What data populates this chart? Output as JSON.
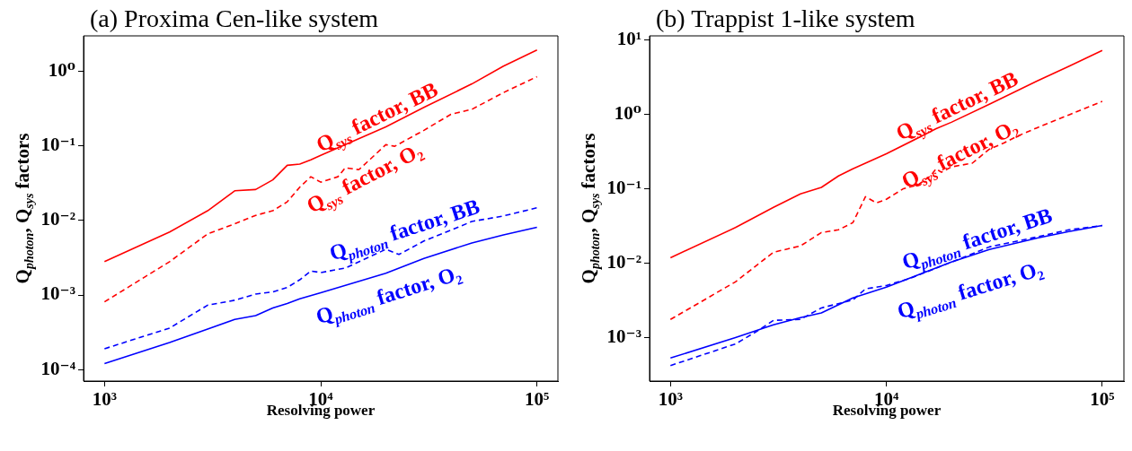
{
  "chart_data": [
    {
      "type": "line",
      "title": "(a) Proxima Cen-like system",
      "xlabel": "Resolving power",
      "ylabel": "Q$_{photon}$, Q$_{sys}$ factors",
      "log": "xy",
      "grid": false,
      "xlim": [
        800,
        125000
      ],
      "ylim": [
        7.4e-05,
        3
      ],
      "xticks": [
        {
          "value": 1000,
          "label": "10³"
        },
        {
          "value": 10000,
          "label": "10⁴"
        },
        {
          "value": 100000,
          "label": "10⁵"
        }
      ],
      "yticks": [
        {
          "value": 0.0001,
          "label": "10⁻⁴"
        },
        {
          "value": 0.001,
          "label": "10⁻³"
        },
        {
          "value": 0.01,
          "label": "10⁻²"
        },
        {
          "value": 0.1,
          "label": "10⁻¹"
        },
        {
          "value": 1,
          "label": "10⁰"
        }
      ],
      "series": [
        {
          "name": "Q$_{sys}$ factor, BB",
          "color": "#ff0000",
          "line_style": "solid",
          "x": [
            1000,
            2000,
            3000,
            4000,
            5000,
            6000,
            7000,
            8000,
            9000,
            10000,
            13000,
            20000,
            30000,
            50000,
            70000,
            100000
          ],
          "values": [
            0.0028,
            0.007,
            0.0135,
            0.025,
            0.026,
            0.035,
            0.055,
            0.057,
            0.065,
            0.075,
            0.104,
            0.18,
            0.33,
            0.68,
            1.18,
            1.94
          ]
        },
        {
          "name": "Q$_{sys}$ factor, O₂",
          "color": "#ff0000",
          "line_style": "dashed",
          "x": [
            1000,
            2000,
            3000,
            4000,
            5000,
            6000,
            7000,
            8000,
            9000,
            10000,
            12000,
            13000,
            15000,
            17000,
            20000,
            22000,
            30000,
            40000,
            50000,
            70000,
            100000
          ],
          "values": [
            0.00081,
            0.0028,
            0.0066,
            0.009,
            0.0117,
            0.0135,
            0.0178,
            0.028,
            0.0386,
            0.0327,
            0.0386,
            0.051,
            0.048,
            0.067,
            0.104,
            0.099,
            0.162,
            0.266,
            0.31,
            0.52,
            0.85
          ]
        },
        {
          "name": "Q$_{photon}$ factor, BB",
          "color": "#0000ff",
          "line_style": "dashed",
          "x": [
            1000,
            2000,
            3000,
            4000,
            5000,
            6000,
            7000,
            8000,
            9000,
            10000,
            13000,
            20000,
            23000,
            30000,
            40000,
            50000,
            70000,
            100000
          ],
          "values": [
            0.00019,
            0.00036,
            0.00073,
            0.00085,
            0.00103,
            0.0011,
            0.00126,
            0.0016,
            0.0021,
            0.002,
            0.0023,
            0.0041,
            0.0035,
            0.0053,
            0.0074,
            0.0097,
            0.0115,
            0.0148
          ]
        },
        {
          "name": "Q$_{photon}$ factor, O₂",
          "color": "#0000ff",
          "line_style": "solid",
          "x": [
            1000,
            2000,
            3000,
            4000,
            5000,
            6000,
            7000,
            8000,
            10000,
            20000,
            30000,
            50000,
            70000,
            100000
          ],
          "values": [
            0.00012,
            0.00023,
            0.00035,
            0.00047,
            0.00053,
            0.00067,
            0.00077,
            0.00089,
            0.00107,
            0.00196,
            0.0031,
            0.005,
            0.0064,
            0.0081
          ]
        }
      ]
    },
    {
      "type": "line",
      "title": "(b) Trappist 1-like system",
      "xlabel": "Resolving power",
      "ylabel": "Q$_{photon}$, Q$_{sys}$ factors",
      "log": "xy",
      "grid": false,
      "xlim": [
        800,
        126000
      ],
      "ylim": [
        0.00026,
        11.3
      ],
      "xticks": [
        {
          "value": 1000,
          "label": "10³"
        },
        {
          "value": 10000,
          "label": "10⁴"
        },
        {
          "value": 100000,
          "label": "10⁵"
        }
      ],
      "yticks": [
        {
          "value": 0.001,
          "label": "10⁻³"
        },
        {
          "value": 0.01,
          "label": "10⁻²"
        },
        {
          "value": 0.1,
          "label": "10⁻¹"
        },
        {
          "value": 1,
          "label": "10⁰"
        },
        {
          "value": 10,
          "label": "10¹"
        }
      ],
      "series": [
        {
          "name": "Q$_{sys}$ factor, BB",
          "color": "#ff0000",
          "line_style": "solid",
          "x": [
            1000,
            2000,
            3000,
            4000,
            5000,
            6000,
            7000,
            8000,
            10000,
            15000,
            17000,
            20000,
            30000,
            50000,
            70000,
            100000
          ],
          "values": [
            0.0118,
            0.03,
            0.056,
            0.085,
            0.104,
            0.148,
            0.185,
            0.22,
            0.295,
            0.53,
            0.64,
            0.78,
            1.36,
            2.8,
            4.4,
            7.2
          ]
        },
        {
          "name": "Q$_{sys}$ factor, O₂",
          "color": "#ff0000",
          "line_style": "dashed",
          "x": [
            1000,
            2000,
            3000,
            4000,
            5000,
            6000,
            7000,
            8000,
            9000,
            10000,
            12000,
            14000,
            16000,
            17000,
            18000,
            20000,
            25000,
            30000,
            35000,
            40000,
            50000,
            70000,
            100000
          ],
          "values": [
            0.00175,
            0.0056,
            0.014,
            0.017,
            0.0257,
            0.028,
            0.035,
            0.078,
            0.0645,
            0.072,
            0.1,
            0.112,
            0.148,
            0.185,
            0.166,
            0.196,
            0.22,
            0.34,
            0.41,
            0.5,
            0.66,
            0.98,
            1.49
          ]
        },
        {
          "name": "Q$_{photon}$ factor, BB",
          "color": "#0000ff",
          "line_style": "dashed",
          "x": [
            1000,
            2000,
            2500,
            3000,
            4000,
            5000,
            7000,
            8000,
            10000,
            13000,
            20000,
            30000,
            50000,
            70000,
            100000
          ],
          "values": [
            0.00042,
            0.00082,
            0.0012,
            0.0017,
            0.00175,
            0.0025,
            0.0032,
            0.0045,
            0.005,
            0.0063,
            0.0103,
            0.0165,
            0.0225,
            0.028,
            0.032
          ]
        },
        {
          "name": "Q$_{photon}$ factor, O₂",
          "color": "#0000ff",
          "line_style": "solid",
          "x": [
            1000,
            2000,
            3000,
            4000,
            5000,
            7000,
            10000,
            20000,
            30000,
            50000,
            70000,
            100000
          ],
          "values": [
            0.00053,
            0.001,
            0.00148,
            0.00185,
            0.00214,
            0.0034,
            0.00475,
            0.0103,
            0.0152,
            0.0217,
            0.0265,
            0.032
          ]
        }
      ]
    }
  ]
}
